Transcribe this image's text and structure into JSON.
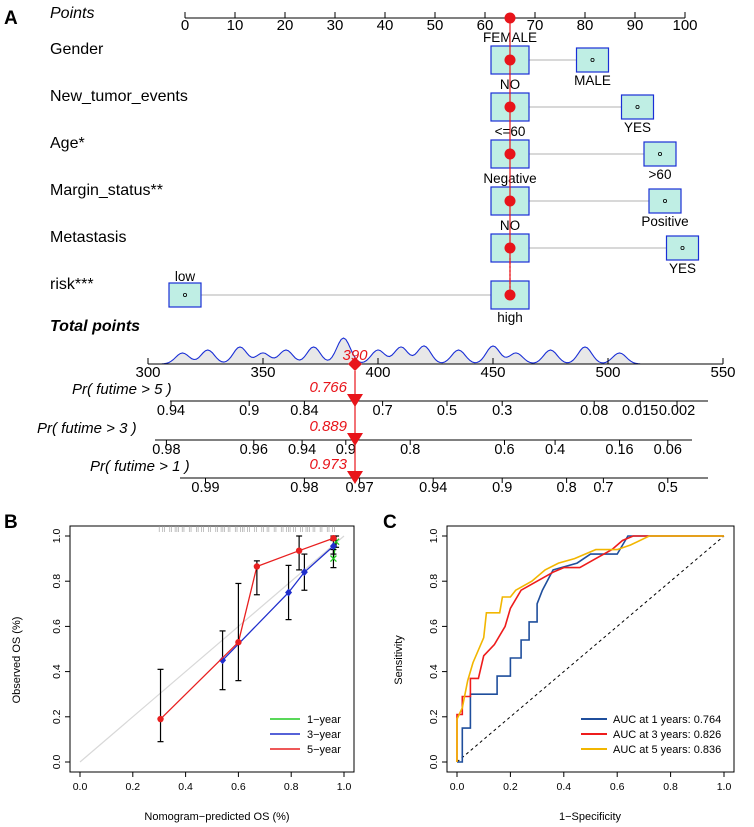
{
  "panel_labels": {
    "a": "A",
    "b": "B",
    "c": "C"
  },
  "chart_data": [
    {
      "type": "nomogram",
      "points_scale": {
        "label": "Points",
        "ticks": [
          "0",
          "10",
          "20",
          "30",
          "40",
          "50",
          "60",
          "70",
          "80",
          "90",
          "100"
        ]
      },
      "selected_points": 65,
      "variables": [
        {
          "name": "Gender",
          "levels": [
            {
              "label": "FEMALE",
              "points": 65
            },
            {
              "label": "MALE",
              "points": 81.5
            }
          ]
        },
        {
          "name": "New_tumor_events",
          "levels": [
            {
              "label": "NO",
              "points": 65
            },
            {
              "label": "YES",
              "points": 90.5
            }
          ]
        },
        {
          "name": "Age*",
          "levels": [
            {
              "label": "<=60",
              "points": 65
            },
            {
              "label": ">60",
              "points": 95
            }
          ]
        },
        {
          "name": "Margin_status**",
          "levels": [
            {
              "label": "Negative",
              "points": 65
            },
            {
              "label": "Positive",
              "points": 96
            }
          ]
        },
        {
          "name": "Metastasis",
          "levels": [
            {
              "label": "NO",
              "points": 65
            },
            {
              "label": "YES",
              "points": 99.5
            }
          ]
        },
        {
          "name": "risk***",
          "levels": [
            {
              "label": "low",
              "points": 0
            },
            {
              "label": "high",
              "points": 65
            }
          ]
        }
      ],
      "total_points": {
        "label": "Total points",
        "ticks": [
          "300",
          "350",
          "400",
          "450",
          "500",
          "550"
        ],
        "range": [
          300,
          550
        ],
        "selected": 390,
        "selected_label": "390",
        "density_peaks": [
          315,
          326,
          340,
          350,
          360,
          372,
          385,
          400,
          410,
          420,
          435,
          450,
          460,
          475,
          490,
          505
        ]
      },
      "probability_scales": [
        {
          "label": "Pr( futime > 5 )",
          "selected": "0.766",
          "ticks": [
            {
              "v": "0.94",
              "t": 310
            },
            {
              "v": "0.9",
              "t": 344
            },
            {
              "v": "0.84",
              "t": 368
            },
            {
              "v": "0.7",
              "t": 402
            },
            {
              "v": "0.5",
              "t": 430
            },
            {
              "v": "0.3",
              "t": 454
            },
            {
              "v": "0.08",
              "t": 494
            },
            {
              "v": "0.015",
              "t": 514
            },
            {
              "v": "0.002",
              "t": 530
            }
          ]
        },
        {
          "label": "Pr( futime > 3 )",
          "selected": "0.889",
          "ticks": [
            {
              "v": "0.98",
              "t": 308
            },
            {
              "v": "0.96",
              "t": 346
            },
            {
              "v": "0.94",
              "t": 367
            },
            {
              "v": "0.9",
              "t": 386
            },
            {
              "v": "0.8",
              "t": 414
            },
            {
              "v": "0.6",
              "t": 455
            },
            {
              "v": "0.4",
              "t": 477
            },
            {
              "v": "0.16",
              "t": 505
            },
            {
              "v": "0.06",
              "t": 526
            }
          ]
        },
        {
          "label": "Pr( futime > 1 )",
          "selected": "0.973",
          "ticks": [
            {
              "v": "0.99",
              "t": 325
            },
            {
              "v": "0.98",
              "t": 368
            },
            {
              "v": "0.97",
              "t": 392
            },
            {
              "v": "0.94",
              "t": 424
            },
            {
              "v": "0.9",
              "t": 454
            },
            {
              "v": "0.8",
              "t": 482
            },
            {
              "v": "0.7",
              "t": 498
            },
            {
              "v": "0.5",
              "t": 526
            }
          ]
        }
      ]
    },
    {
      "type": "line",
      "title": "",
      "xlabel": "Nomogram−predicted OS (%)",
      "ylabel": "Observed OS (%)",
      "xlim": [
        0,
        1
      ],
      "ylim": [
        0,
        1
      ],
      "xticks": [
        "0.0",
        "0.2",
        "0.4",
        "0.6",
        "0.8",
        "1.0"
      ],
      "yticks": [
        "0.0",
        "0.2",
        "0.4",
        "0.6",
        "0.8",
        "1.0"
      ],
      "series": [
        {
          "name": "1−year",
          "color": "#22cc22",
          "points": [
            {
              "x": 0.96,
              "y": 0.9,
              "lo": 0.86,
              "hi": 0.94
            },
            {
              "x": 0.97,
              "y": 0.975,
              "lo": 0.95,
              "hi": 1.0
            }
          ]
        },
        {
          "name": "3−year",
          "color": "#1f2ecc",
          "points": [
            {
              "x": 0.54,
              "y": 0.45,
              "lo": 0.32,
              "hi": 0.58
            },
            {
              "x": 0.79,
              "y": 0.75,
              "lo": 0.63,
              "hi": 0.87
            },
            {
              "x": 0.85,
              "y": 0.84,
              "lo": 0.76,
              "hi": 0.92
            },
            {
              "x": 0.96,
              "y": 0.955,
              "lo": 0.92,
              "hi": 0.99
            }
          ]
        },
        {
          "name": "5−year",
          "color": "#e82020",
          "points": [
            {
              "x": 0.305,
              "y": 0.19,
              "lo": 0.09,
              "hi": 0.41
            },
            {
              "x": 0.6,
              "y": 0.53,
              "lo": 0.36,
              "hi": 0.79
            },
            {
              "x": 0.67,
              "y": 0.865,
              "lo": 0.74,
              "hi": 0.89
            },
            {
              "x": 0.83,
              "y": 0.935,
              "lo": 0.85,
              "hi": 1.0
            },
            {
              "x": 0.96,
              "y": 0.99,
              "lo": 0.98,
              "hi": 1.0
            }
          ]
        }
      ]
    },
    {
      "type": "line",
      "title": "",
      "xlabel": "1−Specificity",
      "ylabel": "Sensitivity",
      "xlim": [
        0,
        1
      ],
      "ylim": [
        0,
        1
      ],
      "xticks": [
        "0.0",
        "0.2",
        "0.4",
        "0.6",
        "0.8",
        "1.0"
      ],
      "yticks": [
        "0.0",
        "0.2",
        "0.4",
        "0.6",
        "0.8",
        "1.0"
      ],
      "series": [
        {
          "name": "AUC at 1 years: 0.764",
          "color": "#1f4e9c",
          "points": [
            [
              0,
              0
            ],
            [
              0.02,
              0
            ],
            [
              0.02,
              0.15
            ],
            [
              0.05,
              0.15
            ],
            [
              0.05,
              0.3
            ],
            [
              0.15,
              0.3
            ],
            [
              0.15,
              0.38
            ],
            [
              0.2,
              0.38
            ],
            [
              0.2,
              0.46
            ],
            [
              0.24,
              0.46
            ],
            [
              0.24,
              0.54
            ],
            [
              0.27,
              0.54
            ],
            [
              0.27,
              0.62
            ],
            [
              0.3,
              0.62
            ],
            [
              0.3,
              0.7
            ],
            [
              0.32,
              0.76
            ],
            [
              0.36,
              0.85
            ],
            [
              0.45,
              0.88
            ],
            [
              0.5,
              0.92
            ],
            [
              0.6,
              0.92
            ],
            [
              0.64,
              1.0
            ],
            [
              1.0,
              1.0
            ]
          ]
        },
        {
          "name": "AUC at 3 years: 0.826",
          "color": "#ee1c1c",
          "points": [
            [
              0,
              0
            ],
            [
              0.0,
              0.21
            ],
            [
              0.02,
              0.21
            ],
            [
              0.02,
              0.29
            ],
            [
              0.05,
              0.29
            ],
            [
              0.05,
              0.37
            ],
            [
              0.08,
              0.37
            ],
            [
              0.1,
              0.47
            ],
            [
              0.14,
              0.52
            ],
            [
              0.18,
              0.6
            ],
            [
              0.2,
              0.68
            ],
            [
              0.24,
              0.76
            ],
            [
              0.3,
              0.8
            ],
            [
              0.36,
              0.84
            ],
            [
              0.4,
              0.86
            ],
            [
              0.46,
              0.86
            ],
            [
              0.52,
              0.9
            ],
            [
              0.58,
              0.94
            ],
            [
              0.62,
              0.98
            ],
            [
              0.66,
              1.0
            ],
            [
              1.0,
              1.0
            ]
          ]
        },
        {
          "name": "AUC at 5 years: 0.836",
          "color": "#f2b600",
          "points": [
            [
              0,
              0
            ],
            [
              0.0,
              0.19
            ],
            [
              0.02,
              0.24
            ],
            [
              0.04,
              0.36
            ],
            [
              0.06,
              0.44
            ],
            [
              0.1,
              0.55
            ],
            [
              0.11,
              0.66
            ],
            [
              0.16,
              0.66
            ],
            [
              0.17,
              0.73
            ],
            [
              0.2,
              0.73
            ],
            [
              0.22,
              0.76
            ],
            [
              0.28,
              0.8
            ],
            [
              0.33,
              0.85
            ],
            [
              0.38,
              0.88
            ],
            [
              0.44,
              0.9
            ],
            [
              0.52,
              0.94
            ],
            [
              0.6,
              0.94
            ],
            [
              0.65,
              0.96
            ],
            [
              0.72,
              1.0
            ],
            [
              1.0,
              1.0
            ]
          ]
        }
      ]
    }
  ]
}
